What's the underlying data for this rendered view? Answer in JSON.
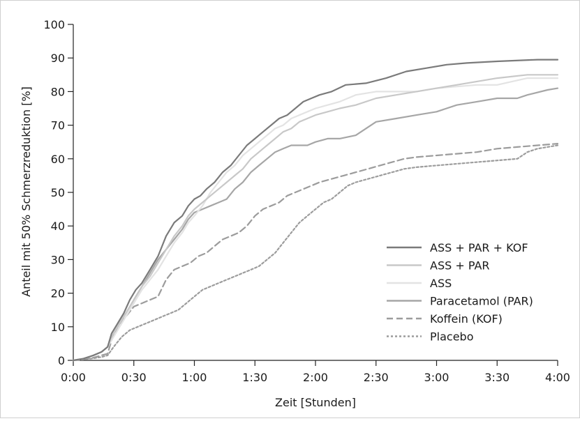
{
  "chart_data": {
    "type": "line",
    "title": "",
    "xlabel": "Zeit [Stunden]",
    "ylabel": "Anteil mit 50% Schmerzreduktion [%]",
    "x_ticks": [
      "0:00",
      "0:30",
      "1:00",
      "1:30",
      "2:00",
      "2:30",
      "3:00",
      "3:30",
      "4:00"
    ],
    "y_ticks": [
      "0",
      "10",
      "20",
      "30",
      "40",
      "50",
      "60",
      "70",
      "80",
      "90",
      "100"
    ],
    "xlim": [
      0,
      240
    ],
    "ylim": [
      0,
      100
    ],
    "x_unit": "minutes",
    "grid": false,
    "legend_position": "bottom-right",
    "series": [
      {
        "name": "ASS + PAR + KOF",
        "color": "#7a7a7a",
        "dash": "solid",
        "points": [
          [
            0,
            0
          ],
          [
            5,
            0.5
          ],
          [
            10,
            1.5
          ],
          [
            14,
            2.5
          ],
          [
            17,
            4
          ],
          [
            19,
            8
          ],
          [
            22,
            11
          ],
          [
            25,
            14
          ],
          [
            28,
            18
          ],
          [
            31,
            21
          ],
          [
            34,
            23
          ],
          [
            38,
            27
          ],
          [
            42,
            31
          ],
          [
            46,
            37
          ],
          [
            50,
            41
          ],
          [
            54,
            43
          ],
          [
            57,
            46
          ],
          [
            60,
            48
          ],
          [
            63,
            49
          ],
          [
            66,
            51
          ],
          [
            70,
            53
          ],
          [
            74,
            56
          ],
          [
            78,
            58
          ],
          [
            82,
            61
          ],
          [
            86,
            64
          ],
          [
            90,
            66
          ],
          [
            94,
            68
          ],
          [
            98,
            70
          ],
          [
            102,
            72
          ],
          [
            106,
            73
          ],
          [
            110,
            75
          ],
          [
            114,
            77
          ],
          [
            118,
            78
          ],
          [
            122,
            79
          ],
          [
            128,
            80
          ],
          [
            135,
            82
          ],
          [
            145,
            82.5
          ],
          [
            155,
            84
          ],
          [
            165,
            86
          ],
          [
            175,
            87
          ],
          [
            185,
            88
          ],
          [
            195,
            88.5
          ],
          [
            210,
            89
          ],
          [
            230,
            89.5
          ],
          [
            240,
            89.5
          ]
        ]
      },
      {
        "name": "ASS + PAR",
        "color": "#c8c8c8",
        "dash": "solid",
        "points": [
          [
            0,
            0
          ],
          [
            5,
            0.5
          ],
          [
            10,
            1.5
          ],
          [
            14,
            2.5
          ],
          [
            17,
            4
          ],
          [
            19,
            7
          ],
          [
            22,
            10
          ],
          [
            25,
            13
          ],
          [
            28,
            16
          ],
          [
            31,
            19
          ],
          [
            34,
            22
          ],
          [
            38,
            25
          ],
          [
            42,
            29
          ],
          [
            46,
            33
          ],
          [
            50,
            37
          ],
          [
            54,
            40
          ],
          [
            57,
            43
          ],
          [
            60,
            45
          ],
          [
            64,
            47
          ],
          [
            68,
            49
          ],
          [
            72,
            51
          ],
          [
            76,
            53
          ],
          [
            80,
            55
          ],
          [
            84,
            57
          ],
          [
            88,
            60
          ],
          [
            92,
            62
          ],
          [
            96,
            64
          ],
          [
            100,
            66
          ],
          [
            104,
            68
          ],
          [
            108,
            69
          ],
          [
            112,
            71
          ],
          [
            116,
            72
          ],
          [
            120,
            73
          ],
          [
            126,
            74
          ],
          [
            132,
            75
          ],
          [
            140,
            76
          ],
          [
            150,
            78
          ],
          [
            160,
            79
          ],
          [
            170,
            80
          ],
          [
            180,
            81
          ],
          [
            190,
            82
          ],
          [
            200,
            83
          ],
          [
            210,
            84
          ],
          [
            225,
            85
          ],
          [
            240,
            85
          ]
        ]
      },
      {
        "name": "ASS",
        "color": "#e3e3e3",
        "dash": "solid",
        "points": [
          [
            0,
            0
          ],
          [
            5,
            0.5
          ],
          [
            10,
            1.5
          ],
          [
            14,
            2.5
          ],
          [
            17,
            4
          ],
          [
            19,
            6
          ],
          [
            22,
            9
          ],
          [
            25,
            12
          ],
          [
            28,
            15
          ],
          [
            31,
            18
          ],
          [
            34,
            21
          ],
          [
            38,
            24
          ],
          [
            42,
            27
          ],
          [
            46,
            31
          ],
          [
            50,
            35
          ],
          [
            54,
            38
          ],
          [
            57,
            41
          ],
          [
            60,
            43
          ],
          [
            64,
            46
          ],
          [
            68,
            50
          ],
          [
            72,
            53
          ],
          [
            76,
            56
          ],
          [
            80,
            58
          ],
          [
            84,
            61
          ],
          [
            88,
            63
          ],
          [
            92,
            65
          ],
          [
            96,
            67
          ],
          [
            100,
            69
          ],
          [
            104,
            70
          ],
          [
            108,
            72
          ],
          [
            112,
            73
          ],
          [
            116,
            74
          ],
          [
            120,
            75
          ],
          [
            126,
            76
          ],
          [
            132,
            77
          ],
          [
            140,
            79
          ],
          [
            150,
            80
          ],
          [
            160,
            80
          ],
          [
            170,
            80
          ],
          [
            180,
            81
          ],
          [
            190,
            81.5
          ],
          [
            200,
            82
          ],
          [
            210,
            82
          ],
          [
            225,
            84
          ],
          [
            240,
            84
          ]
        ]
      },
      {
        "name": "Paracetamol (PAR)",
        "color": "#a6a6a6",
        "dash": "solid",
        "points": [
          [
            0,
            0
          ],
          [
            5,
            0.5
          ],
          [
            10,
            1.5
          ],
          [
            14,
            2.5
          ],
          [
            17,
            4
          ],
          [
            19,
            7
          ],
          [
            22,
            10
          ],
          [
            25,
            13
          ],
          [
            28,
            16
          ],
          [
            31,
            19
          ],
          [
            34,
            22
          ],
          [
            38,
            26
          ],
          [
            42,
            30
          ],
          [
            46,
            33
          ],
          [
            50,
            36
          ],
          [
            54,
            39
          ],
          [
            57,
            42
          ],
          [
            60,
            44
          ],
          [
            64,
            45
          ],
          [
            68,
            46
          ],
          [
            72,
            47
          ],
          [
            76,
            48
          ],
          [
            80,
            51
          ],
          [
            84,
            53
          ],
          [
            88,
            56
          ],
          [
            92,
            58
          ],
          [
            96,
            60
          ],
          [
            100,
            62
          ],
          [
            104,
            63
          ],
          [
            108,
            64
          ],
          [
            112,
            64
          ],
          [
            116,
            64
          ],
          [
            120,
            65
          ],
          [
            126,
            66
          ],
          [
            132,
            66
          ],
          [
            140,
            67
          ],
          [
            145,
            69
          ],
          [
            150,
            71
          ],
          [
            160,
            72
          ],
          [
            170,
            73
          ],
          [
            180,
            74
          ],
          [
            190,
            76
          ],
          [
            200,
            77
          ],
          [
            210,
            78
          ],
          [
            220,
            78
          ],
          [
            225,
            79
          ],
          [
            235,
            80.5
          ],
          [
            240,
            81
          ]
        ]
      },
      {
        "name": "Koffein (KOF)",
        "color": "#9c9c9c",
        "dash": "9,5",
        "points": [
          [
            0,
            0
          ],
          [
            5,
            0.3
          ],
          [
            10,
            0.8
          ],
          [
            14,
            1.5
          ],
          [
            17,
            2
          ],
          [
            19,
            6
          ],
          [
            22,
            10
          ],
          [
            26,
            13
          ],
          [
            30,
            16
          ],
          [
            34,
            17
          ],
          [
            38,
            18
          ],
          [
            42,
            19
          ],
          [
            46,
            24
          ],
          [
            50,
            27
          ],
          [
            54,
            28
          ],
          [
            58,
            29
          ],
          [
            62,
            31
          ],
          [
            66,
            32
          ],
          [
            70,
            34
          ],
          [
            74,
            36
          ],
          [
            78,
            37
          ],
          [
            82,
            38
          ],
          [
            86,
            40
          ],
          [
            90,
            43
          ],
          [
            94,
            45
          ],
          [
            98,
            46
          ],
          [
            102,
            47
          ],
          [
            106,
            49
          ],
          [
            110,
            50
          ],
          [
            114,
            51
          ],
          [
            118,
            52
          ],
          [
            122,
            53
          ],
          [
            128,
            54
          ],
          [
            134,
            55
          ],
          [
            140,
            56
          ],
          [
            146,
            57
          ],
          [
            152,
            58
          ],
          [
            158,
            59
          ],
          [
            164,
            60
          ],
          [
            170,
            60.5
          ],
          [
            180,
            61
          ],
          [
            190,
            61.5
          ],
          [
            200,
            62
          ],
          [
            210,
            63
          ],
          [
            220,
            63.5
          ],
          [
            230,
            64
          ],
          [
            240,
            64.5
          ]
        ]
      },
      {
        "name": "Placebo",
        "color": "#9c9c9c",
        "dash": "3,3",
        "points": [
          [
            0,
            0
          ],
          [
            5,
            0.3
          ],
          [
            10,
            0.6
          ],
          [
            14,
            1
          ],
          [
            17,
            1.5
          ],
          [
            20,
            4
          ],
          [
            24,
            7
          ],
          [
            28,
            9
          ],
          [
            32,
            10
          ],
          [
            36,
            11
          ],
          [
            40,
            12
          ],
          [
            44,
            13
          ],
          [
            48,
            14
          ],
          [
            52,
            15
          ],
          [
            56,
            17
          ],
          [
            60,
            19
          ],
          [
            64,
            21
          ],
          [
            68,
            22
          ],
          [
            72,
            23
          ],
          [
            76,
            24
          ],
          [
            80,
            25
          ],
          [
            84,
            26
          ],
          [
            88,
            27
          ],
          [
            92,
            28
          ],
          [
            96,
            30
          ],
          [
            100,
            32
          ],
          [
            104,
            35
          ],
          [
            108,
            38
          ],
          [
            112,
            41
          ],
          [
            116,
            43
          ],
          [
            120,
            45
          ],
          [
            124,
            47
          ],
          [
            128,
            48
          ],
          [
            132,
            50
          ],
          [
            136,
            52
          ],
          [
            140,
            53
          ],
          [
            146,
            54
          ],
          [
            152,
            55
          ],
          [
            158,
            56
          ],
          [
            164,
            57
          ],
          [
            170,
            57.5
          ],
          [
            180,
            58
          ],
          [
            190,
            58.5
          ],
          [
            200,
            59
          ],
          [
            210,
            59.5
          ],
          [
            220,
            60
          ],
          [
            225,
            62
          ],
          [
            230,
            63
          ],
          [
            240,
            64
          ]
        ]
      }
    ]
  }
}
